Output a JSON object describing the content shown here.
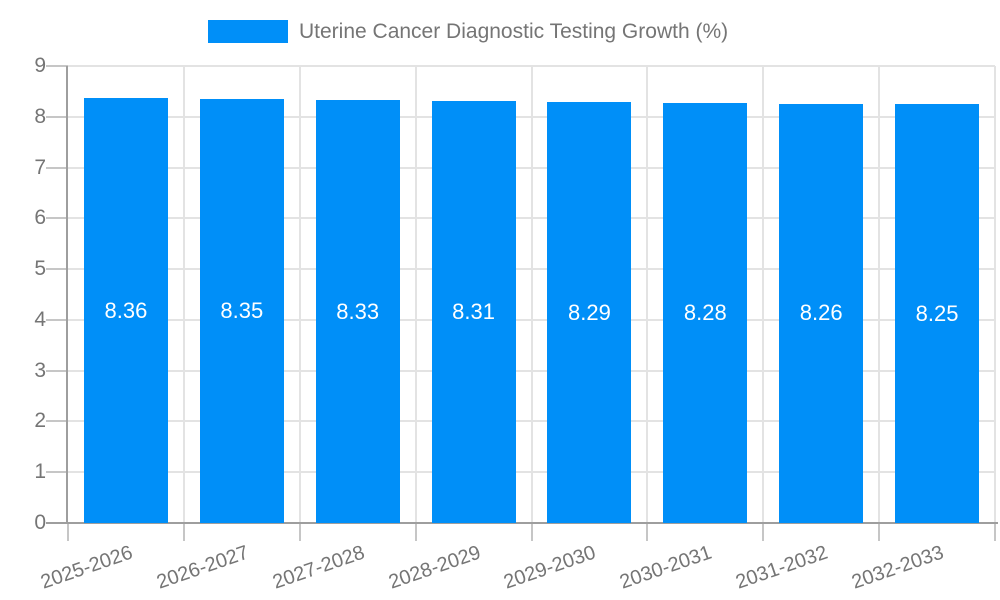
{
  "chart_data": {
    "type": "bar",
    "title": "Uterine Cancer Diagnostic Testing Growth (%)",
    "categories": [
      "2025-2026",
      "2026-2027",
      "2027-2028",
      "2028-2029",
      "2029-2030",
      "2030-2031",
      "2031-2032",
      "2032-2033"
    ],
    "values": [
      8.36,
      8.35,
      8.33,
      8.31,
      8.29,
      8.28,
      8.26,
      8.25
    ],
    "value_labels": [
      "8.36",
      "8.35",
      "8.33",
      "8.31",
      "8.29",
      "8.28",
      "8.26",
      "8.25"
    ],
    "xlabel": "",
    "ylabel": "",
    "ylim": [
      0,
      9
    ],
    "y_ticks": [
      0,
      1,
      2,
      3,
      4,
      5,
      6,
      7,
      8,
      9
    ],
    "grid": true,
    "legend_position": "top-center",
    "x_label_rotation_deg": -19,
    "colors": {
      "bar": "#008ff8",
      "value_label": "#ffffff",
      "axis_label": "#757575",
      "legend_text": "#757575",
      "gridline": "#e3e3e3",
      "axis_line": "#9e9e9e",
      "tick": "#c6c6c6",
      "background": "#ffffff"
    }
  }
}
